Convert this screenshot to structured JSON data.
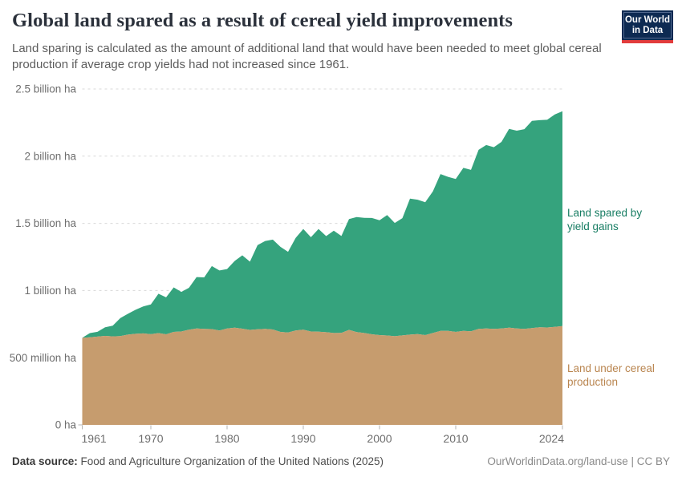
{
  "header": {
    "title": "Global land spared as a result of cereal yield improvements",
    "subtitle": "Land sparing is calculated as the amount of additional land that would have been needed to meet global cereal production if average crop yields had not increased since 1961.",
    "logo_line1": "Our World",
    "logo_line2": "in Data",
    "logo_colors": {
      "background": "#0d2a52",
      "border": "#51688e",
      "stripe": "#e23c3c"
    }
  },
  "chart_data": {
    "type": "area",
    "stacked": true,
    "unit": "million hectares",
    "x_start": 1961,
    "x_end": 2024,
    "ylim": [
      0,
      2500
    ],
    "grid": true,
    "years": [
      1961,
      1962,
      1963,
      1964,
      1965,
      1966,
      1967,
      1968,
      1969,
      1970,
      1971,
      1972,
      1973,
      1974,
      1975,
      1976,
      1977,
      1978,
      1979,
      1980,
      1981,
      1982,
      1983,
      1984,
      1985,
      1986,
      1987,
      1988,
      1989,
      1990,
      1991,
      1992,
      1993,
      1994,
      1995,
      1996,
      1997,
      1998,
      1999,
      2000,
      2001,
      2002,
      2003,
      2004,
      2005,
      2006,
      2007,
      2008,
      2009,
      2010,
      2011,
      2012,
      2013,
      2014,
      2015,
      2016,
      2017,
      2018,
      2019,
      2020,
      2021,
      2022,
      2023,
      2024
    ],
    "series": [
      {
        "name": "Land under cereal production",
        "color": "#c69c6e",
        "label_color": "#b9854f",
        "values": [
          648,
          652,
          657,
          662,
          659,
          661,
          672,
          678,
          681,
          675,
          683,
          674,
          692,
          695,
          708,
          717,
          714,
          713,
          703,
          717,
          724,
          716,
          707,
          712,
          715,
          710,
          692,
          688,
          702,
          708,
          695,
          694,
          690,
          684,
          685,
          707,
          691,
          684,
          674,
          668,
          665,
          660,
          666,
          672,
          676,
          668,
          684,
          700,
          699,
          692,
          700,
          697,
          715,
          718,
          715,
          718,
          724,
          717,
          714,
          720,
          726,
          725,
          730,
          735
        ]
      },
      {
        "name": "Land spared by yield gains",
        "color": "#35a37d",
        "label_color": "#177d63",
        "values": [
          0,
          31,
          36,
          65,
          79,
          134,
          155,
          179,
          201,
          222,
          293,
          275,
          331,
          295,
          312,
          383,
          384,
          469,
          446,
          443,
          496,
          546,
          508,
          626,
          654,
          669,
          633,
          600,
          690,
          750,
          702,
          764,
          715,
          762,
          721,
          825,
          856,
          857,
          866,
          855,
          897,
          843,
          873,
          1012,
          1000,
          989,
          1054,
          1167,
          1147,
          1138,
          1213,
          1201,
          1332,
          1365,
          1352,
          1388,
          1479,
          1473,
          1487,
          1543,
          1542,
          1546,
          1580,
          1600
        ]
      }
    ],
    "yticks": [
      {
        "value": 0,
        "label": "0 ha"
      },
      {
        "value": 500,
        "label": "500 million ha"
      },
      {
        "value": 1000,
        "label": "1 billion ha"
      },
      {
        "value": 1500,
        "label": "1.5 billion ha"
      },
      {
        "value": 2000,
        "label": "2 billion ha"
      },
      {
        "value": 2500,
        "label": "2.5 billion ha"
      }
    ],
    "xticks": [
      1961,
      1970,
      1980,
      1990,
      2000,
      2010,
      2024
    ]
  },
  "footer": {
    "source_label": "Data source:",
    "source_value": "Food and Agriculture Organization of the United Nations (2025)",
    "credit": "OurWorldinData.org/land-use | CC BY"
  }
}
